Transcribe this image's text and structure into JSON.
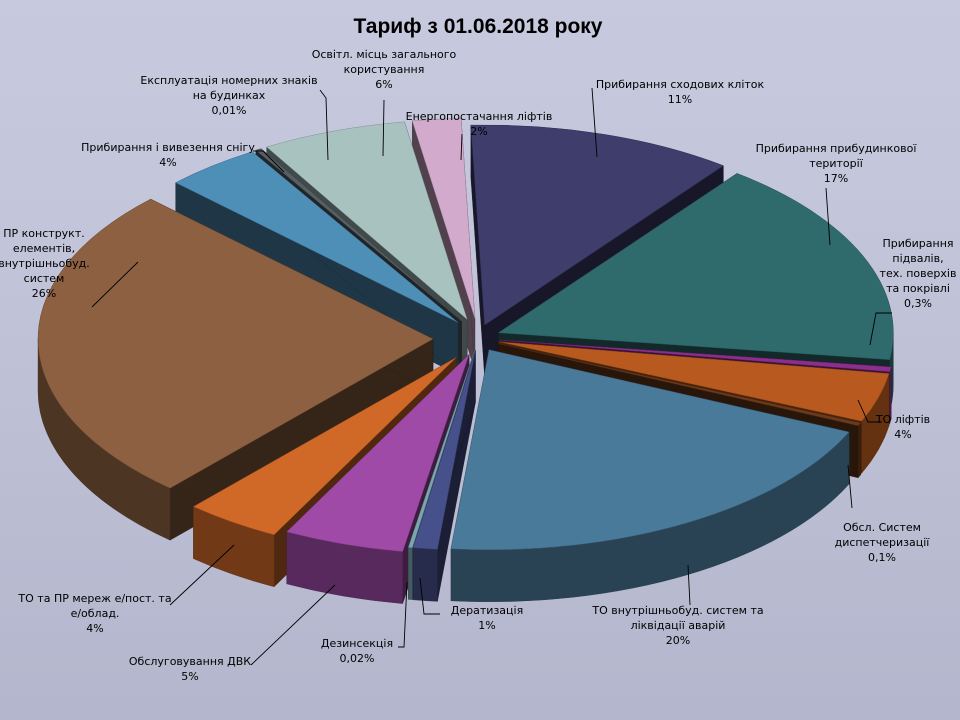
{
  "chart_data": {
    "type": "pie",
    "title": "Тариф з 01.06.2018 року",
    "slices": [
      {
        "name": "Прибирання сходових кліток",
        "value": 11,
        "value_label": "11%",
        "color": "#3f3d6b",
        "label_lines": [
          "Прибирання сходових кліток"
        ]
      },
      {
        "name": "Прибирання прибудинкової території",
        "value": 17,
        "value_label": "17%",
        "color": "#2f6a6d",
        "label_lines": [
          "Прибирання прибудинкової",
          "території"
        ]
      },
      {
        "name": "Прибирання підвалів, тех. поверхів та покрівлі",
        "value": 0.3,
        "value_label": "0,3%",
        "color": "#8c2f8c",
        "label_lines": [
          "Прибирання",
          "підвалів,",
          "тех. поверхів",
          "та покрівлі"
        ]
      },
      {
        "name": "ТО ліфтів",
        "value": 4,
        "value_label": "4%",
        "color": "#b85a1f",
        "label_lines": [
          "ТО ліфтів"
        ]
      },
      {
        "name": "Обсл. Систем диспетчеризації",
        "value": 0.1,
        "value_label": "0,1%",
        "color": "#6b3a1a",
        "label_lines": [
          "Обсл.  Систем",
          "диспетчеризації"
        ]
      },
      {
        "name": "ТО внутрішньобуд. систем та ліквідації аварій",
        "value": 20,
        "value_label": "20%",
        "color": "#4a7a9a",
        "label_lines": [
          "ТО внутрішньобуд.  систем та",
          "ліквідації аварій"
        ]
      },
      {
        "name": "Дератизація",
        "value": 1,
        "value_label": "1%",
        "color": "#46508a",
        "label_lines": [
          "Дератизація"
        ]
      },
      {
        "name": "Дезинсекція",
        "value": 0.02,
        "value_label": "0,02%",
        "color": "#7aa6b0",
        "label_lines": [
          "Дезинсекція"
        ]
      },
      {
        "name": "Обслуговування ДВК",
        "value": 5,
        "value_label": "5%",
        "color": "#a04aa8",
        "label_lines": [
          "Обслуговування ДВК"
        ]
      },
      {
        "name": "ТО та ПР мереж е/пост. та е/облад.",
        "value": 4,
        "value_label": "4%",
        "color": "#d06828",
        "label_lines": [
          "ТО та ПР мереж  е/пост. та",
          "е/облад."
        ]
      },
      {
        "name": "ПР конструкт. елементів, внутрішньобуд. систем",
        "value": 26,
        "value_label": "26%",
        "color": "#8c6040",
        "label_lines": [
          "ПР конструкт.",
          "елементів,",
          "внутрішньобуд.",
          "систем"
        ]
      },
      {
        "name": "Прибирання і вивезення снігу",
        "value": 4,
        "value_label": "4%",
        "color": "#4e8fb8",
        "label_lines": [
          "Прибирання  і вивезення  снігу"
        ]
      },
      {
        "name": "Експлуатація номерних знаків на будинках",
        "value": 0.01,
        "value_label": "0,01%",
        "color": "#556066",
        "label_lines": [
          "Експлуатація номерних знаків",
          "на будинках"
        ]
      },
      {
        "name": "Освітл. місць загального користування",
        "value": 6,
        "value_label": "6%",
        "color": "#a8c2c0",
        "label_lines": [
          "Освітл. місць загального",
          "користування"
        ]
      },
      {
        "name": "Енергопостачання ліфтів",
        "value": 2,
        "value_label": "2%",
        "color": "#d2aacb",
        "label_lines": [
          "Енергопостачання ліфтів"
        ]
      }
    ],
    "legend": "none"
  }
}
